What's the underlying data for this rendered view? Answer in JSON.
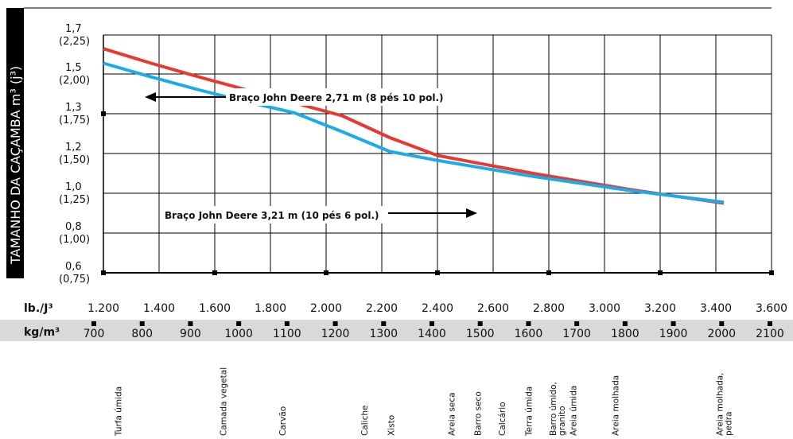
{
  "chart_data": {
    "type": "line",
    "ylabel": "TAMANHO DA CAÇAMBA m³ (j³)",
    "y_ticks": [
      {
        "value": 0.6,
        "label": "0,6",
        "sub": "(0,75)"
      },
      {
        "value": 0.8,
        "label": "0,8",
        "sub": "(1,00)"
      },
      {
        "value": 1.0,
        "label": "1,0",
        "sub": "(1,25)"
      },
      {
        "value": 1.2,
        "label": "1,2",
        "sub": "(1,50)"
      },
      {
        "value": 1.3,
        "label": "1,3",
        "sub": "(1,75)"
      },
      {
        "value": 1.5,
        "label": "1,5",
        "sub": "(2,00)"
      },
      {
        "value": 1.7,
        "label": "1,7",
        "sub": "(2,25)"
      }
    ],
    "x_unit_lb": "lb./J³",
    "x_ticks_lb": [
      "1.200",
      "1.400",
      "1.600",
      "1.800",
      "2.000",
      "2.200",
      "2.400",
      "2.600",
      "2.800",
      "3.000",
      "3.200",
      "3.400",
      "3.600"
    ],
    "x_unit_kg": "kg/m³",
    "x_ticks_kg": [
      "700",
      "800",
      "900",
      "1000",
      "1100",
      "1200",
      "1300",
      "1400",
      "1500",
      "1600",
      "1700",
      "1800",
      "1900",
      "2000",
      "2100"
    ],
    "xlim": [
      700,
      2100
    ],
    "series": [
      {
        "name": "Braço John Deere 2,71 m (8 pés 10 pol.)",
        "color": "#e8392f",
        "x": [
          700,
          800,
          900,
          1000,
          1100,
          1200,
          1300,
          1400,
          1500,
          1600,
          1700,
          1800,
          1900,
          2000
        ],
        "y": [
          1.63,
          1.555,
          1.485,
          1.42,
          1.355,
          1.295,
          1.24,
          1.19,
          1.145,
          1.1,
          1.06,
          1.02,
          0.985,
          0.95
        ]
      },
      {
        "name": "Braço John Deere 3,21 m (10 pés 6 pol.)",
        "color": "#1aace8",
        "x": [
          700,
          800,
          900,
          1000,
          1100,
          1200,
          1300,
          1400,
          1500,
          1600,
          1700,
          1800,
          1900,
          2000
        ],
        "y": [
          1.555,
          1.485,
          1.42,
          1.36,
          1.305,
          1.255,
          1.205,
          1.165,
          1.125,
          1.085,
          1.05,
          1.015,
          0.985,
          0.955
        ]
      }
    ],
    "materials": [
      {
        "label": "Turfa úmida",
        "x": 750
      },
      {
        "label": "Camada vegetal",
        "x": 968
      },
      {
        "label": "Carvão",
        "x": 1090
      },
      {
        "label": "Caliche",
        "x": 1260
      },
      {
        "label": "Xisto",
        "x": 1315
      },
      {
        "label": "Areia seca",
        "x": 1440
      },
      {
        "label": "Barro seco",
        "x": 1495
      },
      {
        "label": "Calcário",
        "x": 1545
      },
      {
        "label": "Terra úmida",
        "x": 1600
      },
      {
        "label": "Barro úmido, granito",
        "x": 1650
      },
      {
        "label": "Areia úmida",
        "x": 1692
      },
      {
        "label": "Areia molhada",
        "x": 1780
      },
      {
        "label": "Areia molhada, pedra",
        "x": 1995
      }
    ],
    "grid": true
  },
  "colors": {
    "band": "#d9d9d9",
    "ylabel_bg": "#000000",
    "grid": "#000000"
  }
}
